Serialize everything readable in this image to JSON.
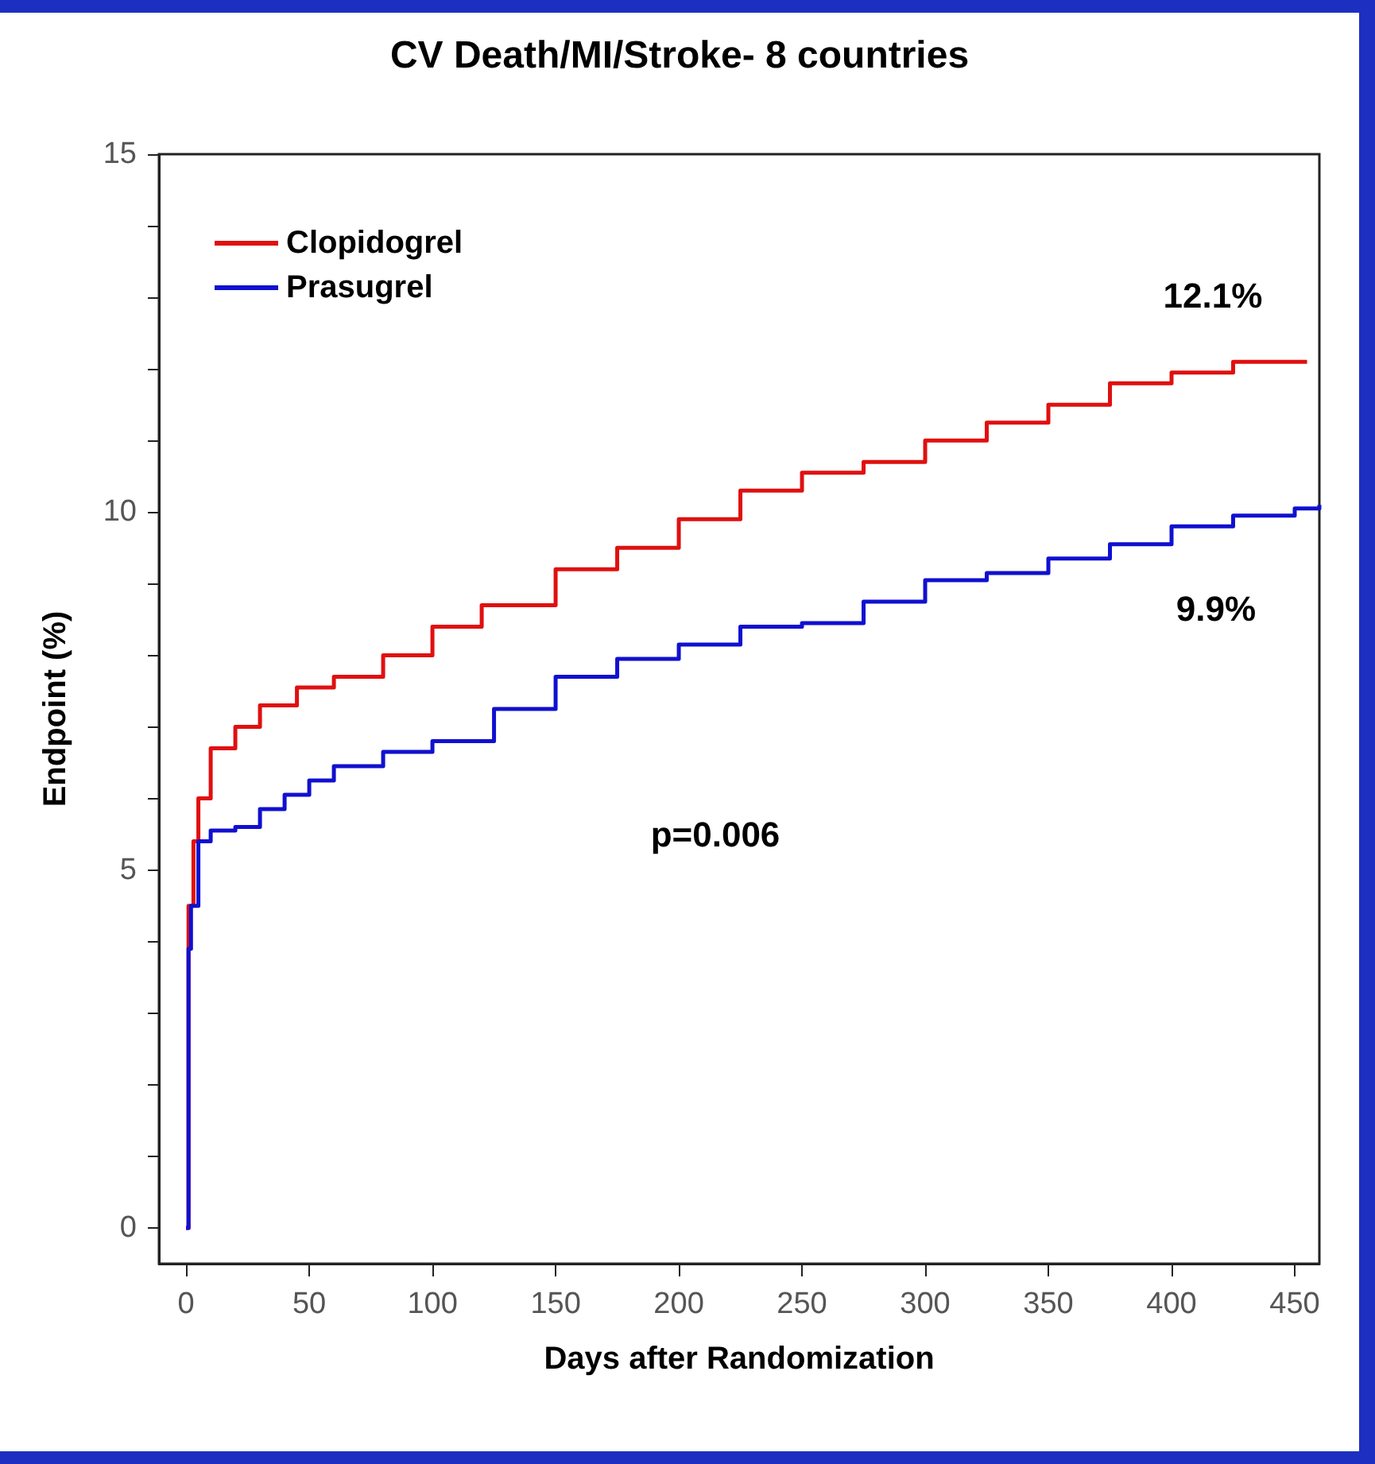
{
  "chart_data": {
    "type": "step",
    "title": "CV Death/MI/Stroke- 8 countries",
    "xlabel": "Days after Randomization",
    "ylabel": "Endpoint (%)",
    "series": [
      {
        "name": "Clopidogrel",
        "color": "#e01010",
        "x": [
          0,
          1,
          3,
          5,
          10,
          20,
          30,
          45,
          60,
          80,
          100,
          120,
          150,
          175,
          200,
          225,
          250,
          275,
          300,
          325,
          350,
          375,
          400,
          425,
          455
        ],
        "values": [
          0,
          4.5,
          5.4,
          6.0,
          6.7,
          7.0,
          7.3,
          7.55,
          7.7,
          8.0,
          8.4,
          8.7,
          9.2,
          9.5,
          9.9,
          10.3,
          10.55,
          10.7,
          11.0,
          11.25,
          11.5,
          11.8,
          11.95,
          12.1,
          12.1
        ]
      },
      {
        "name": "Prasugrel",
        "color": "#1010d0",
        "x": [
          0,
          1,
          2,
          5,
          10,
          20,
          30,
          40,
          50,
          60,
          80,
          100,
          125,
          150,
          175,
          200,
          225,
          250,
          275,
          300,
          325,
          350,
          375,
          400,
          425,
          450,
          460
        ],
        "values": [
          0,
          3.9,
          4.5,
          5.4,
          5.55,
          5.6,
          5.85,
          6.05,
          6.25,
          6.45,
          6.65,
          6.8,
          7.25,
          7.7,
          7.95,
          8.15,
          8.4,
          8.45,
          8.75,
          9.05,
          9.15,
          9.35,
          9.55,
          9.8,
          9.95,
          10.05,
          10.1
        ]
      }
    ],
    "xlim": [
      -11,
      460
    ],
    "xticks": [
      0,
      50,
      100,
      150,
      200,
      250,
      300,
      350,
      400,
      450
    ],
    "ylim": [
      -0.5,
      15
    ],
    "yticks": [
      0,
      {
        "value": 1,
        "label": null
      },
      {
        "value": 2,
        "label": null
      },
      {
        "value": 3,
        "label": null
      },
      {
        "value": 4,
        "label": null
      },
      5,
      {
        "value": 6,
        "label": null
      },
      {
        "value": 7,
        "label": null
      },
      {
        "value": 8,
        "label": null
      },
      {
        "value": 9,
        "label": null
      },
      10,
      {
        "value": 11,
        "label": null
      },
      {
        "value": 12,
        "label": null
      },
      {
        "value": 13,
        "label": null
      },
      {
        "value": 14,
        "label": null
      },
      15
    ],
    "annotations": [
      "12.1%",
      "9.9%",
      "p=0.006"
    ],
    "legend": "top left",
    "grid": false,
    "marker": "none",
    "line_style": "solid"
  }
}
